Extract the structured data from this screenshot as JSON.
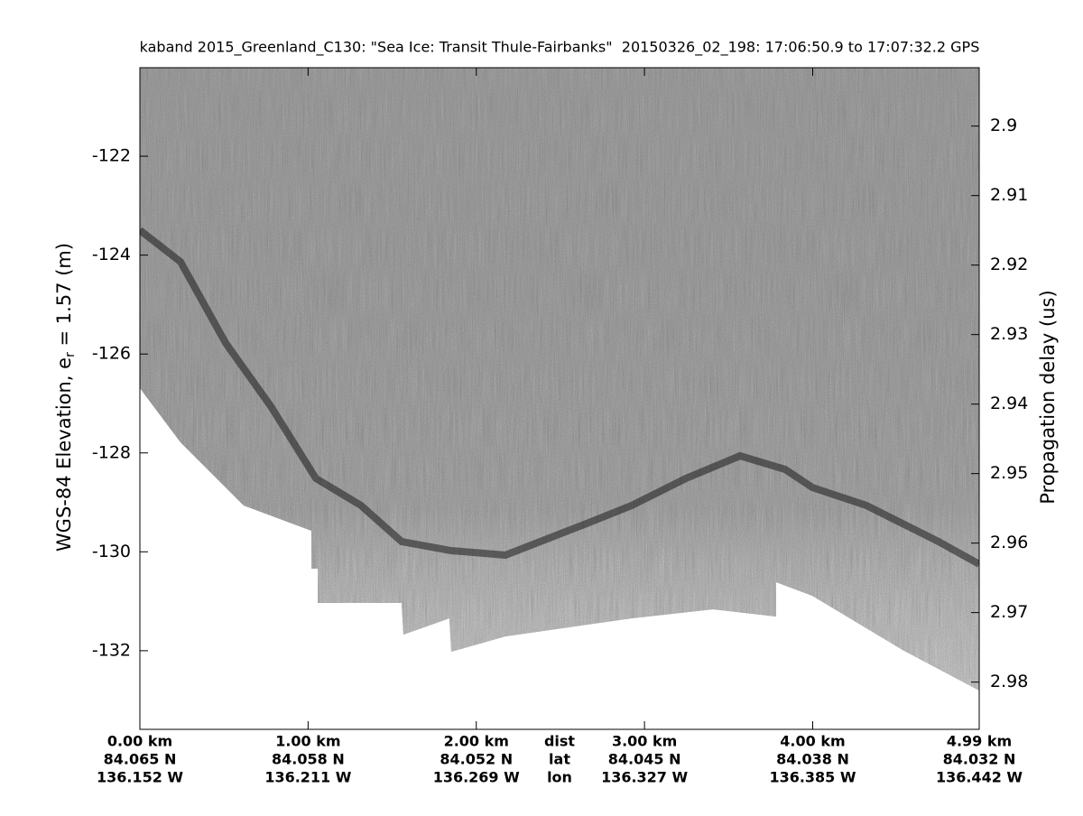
{
  "chart_data": {
    "type": "echogram",
    "title": "kaband 2015_Greenland_C130: \"Sea Ice: Transit Thule-Fairbanks\"  20150326_02_198: 17:06:50.9 to 17:07:32.2 GPS",
    "ylabel_parts": [
      "WGS-84 Elevation, e",
      "r",
      " = 1.57 (m)"
    ],
    "y2label": "Propagation delay (us)",
    "xlim": [
      0,
      4.99
    ],
    "xticks": [
      {
        "value": 0,
        "label": "0.00 km"
      },
      {
        "value": 1,
        "label": "1.00 km"
      },
      {
        "value": 2,
        "label": "2.00 km"
      },
      {
        "value": 3,
        "label": "3.00 km"
      },
      {
        "value": 4,
        "label": "4.00 km"
      },
      {
        "value": 4.99,
        "label": "4.99 km"
      }
    ],
    "xtick_lat": [
      "84.065 N",
      "84.058 N",
      "84.052 N",
      "84.045 N",
      "84.038 N",
      "84.032 N"
    ],
    "xtick_lon": [
      "136.152 W",
      "136.211 W",
      "136.269 W",
      "136.327 W",
      "136.385 W",
      "136.442 W"
    ],
    "row_headers": [
      "dist",
      "lat",
      "lon"
    ],
    "ylim": [
      -133.59,
      -120.21
    ],
    "yticks": [
      -122,
      -124,
      -126,
      -128,
      -130,
      -132
    ],
    "y2lim": [
      2.9868,
      2.8916
    ],
    "y2ticks": [
      2.9,
      2.91,
      2.92,
      2.93,
      2.94,
      2.95,
      2.96,
      2.97,
      2.98
    ]
  }
}
